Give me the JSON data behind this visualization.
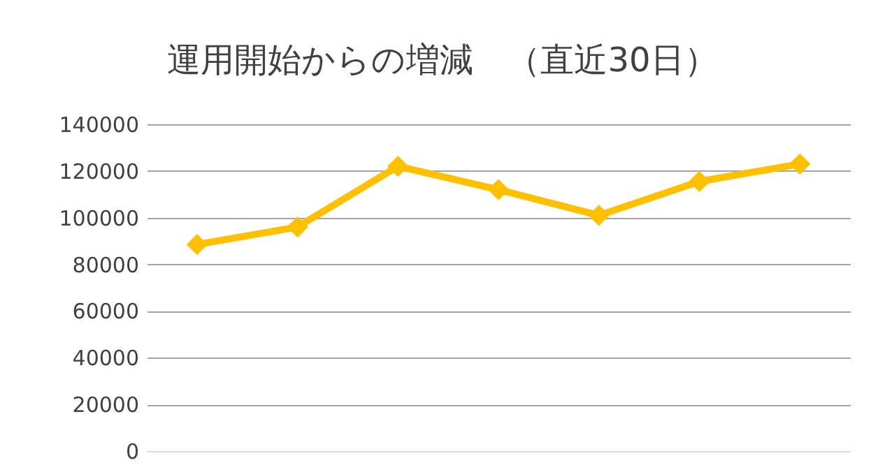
{
  "chart_data": {
    "type": "line",
    "title": "運用開始からの増減　（直近30日）",
    "categories": [
      null,
      null,
      null,
      null,
      null,
      null,
      null
    ],
    "series": [
      {
        "color": "#ffc000",
        "values": [
          88500,
          96000,
          122000,
          112000,
          101000,
          115500,
          123000
        ]
      }
    ],
    "ylim": [
      0,
      140000
    ],
    "yticks": [
      0,
      20000,
      40000,
      60000,
      80000,
      100000,
      120000,
      140000
    ],
    "grid": "y",
    "tick_labels": "y",
    "marker": "diamond",
    "line_style": "solid"
  }
}
